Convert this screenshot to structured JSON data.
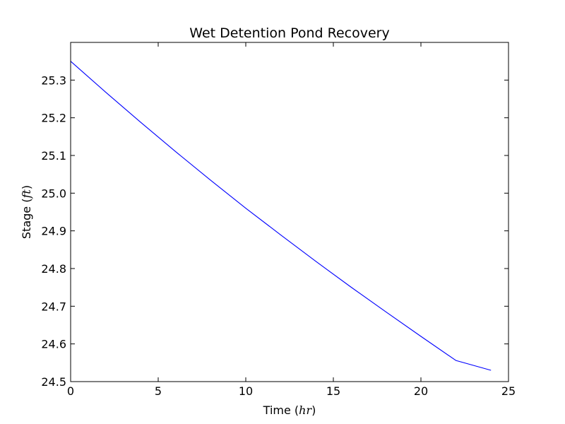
{
  "chart_data": {
    "type": "line",
    "title": "Wet Detention Pond Recovery",
    "xlabel": {
      "text": "Time (",
      "unit": "hr",
      "close": ")"
    },
    "ylabel": {
      "text": "Stage (",
      "unit": "ft",
      "close": ")"
    },
    "xlim": [
      0,
      25
    ],
    "ylim": [
      24.5,
      25.4
    ],
    "xticks": [
      0,
      5,
      10,
      15,
      20,
      25
    ],
    "xtick_labels": [
      "0",
      "5",
      "10",
      "15",
      "20",
      "25"
    ],
    "yticks": [
      24.5,
      24.6,
      24.7,
      24.8,
      24.9,
      25.0,
      25.1,
      25.2,
      25.3
    ],
    "ytick_labels": [
      "24.5",
      "24.6",
      "24.7",
      "24.8",
      "24.9",
      "25.0",
      "25.1",
      "25.2",
      "25.3"
    ],
    "grid": false,
    "series": [
      {
        "color": "#0000ff",
        "x": [
          0,
          2,
          4,
          6,
          8,
          10,
          12,
          14,
          16,
          18,
          20,
          22,
          24
        ],
        "y": [
          25.35,
          25.268,
          25.188,
          25.11,
          25.034,
          24.96,
          24.889,
          24.819,
          24.751,
          24.685,
          24.62,
          24.556,
          24.53
        ]
      }
    ]
  }
}
